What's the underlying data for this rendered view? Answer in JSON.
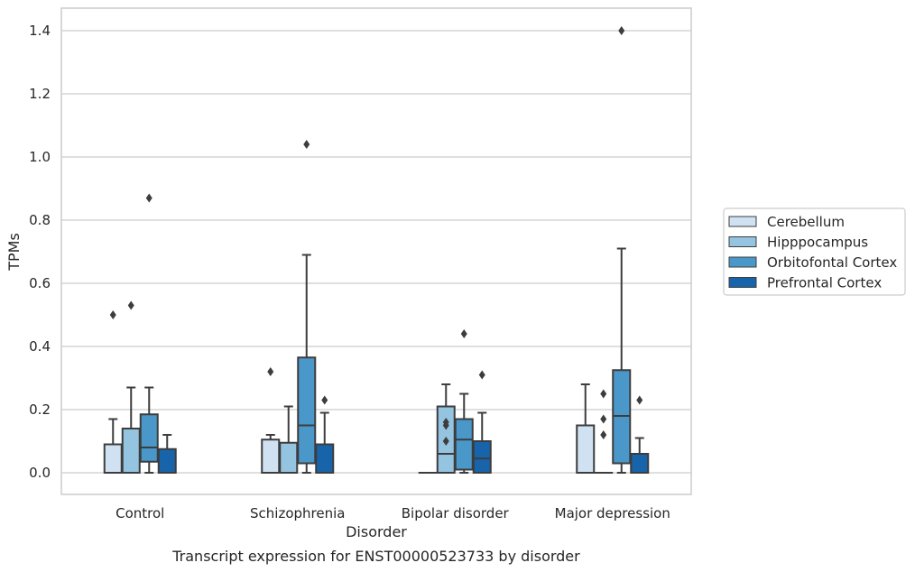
{
  "chart_data": {
    "type": "box",
    "caption": "Transcript expression for ENST00000523733 by disorder",
    "xlabel": "Disorder",
    "ylabel": "TPMs",
    "ylim": [
      -0.07,
      1.47
    ],
    "yticks": [
      0.0,
      0.2,
      0.4,
      0.6,
      0.8,
      1.0,
      1.2,
      1.4
    ],
    "categories": [
      "Control",
      "Schizophrenia",
      "Bipolar disorder",
      "Major depression"
    ],
    "grid": "horizontal",
    "legend_position": "right",
    "series": [
      {
        "name": "Cerebellum",
        "color": "#d0e1f2",
        "boxes": [
          {
            "min": 0.0,
            "q1": 0.0,
            "median": 0.0,
            "q3": 0.09,
            "max": 0.17,
            "outliers": [
              0.5
            ]
          },
          {
            "min": 0.0,
            "q1": 0.0,
            "median": 0.0,
            "q3": 0.105,
            "max": 0.12,
            "outliers": [
              0.32
            ]
          },
          {
            "min": 0.0,
            "q1": 0.0,
            "median": 0.0,
            "q3": 0.0,
            "max": 0.0,
            "outliers": []
          },
          {
            "min": 0.0,
            "q1": 0.0,
            "median": 0.0,
            "q3": 0.15,
            "max": 0.28,
            "outliers": []
          }
        ]
      },
      {
        "name": "Hipppocampus",
        "color": "#94c4df",
        "boxes": [
          {
            "min": 0.0,
            "q1": 0.0,
            "median": 0.0,
            "q3": 0.14,
            "max": 0.27,
            "outliers": [
              0.53
            ]
          },
          {
            "min": 0.0,
            "q1": 0.0,
            "median": 0.0,
            "q3": 0.095,
            "max": 0.21,
            "outliers": []
          },
          {
            "min": 0.0,
            "q1": 0.0,
            "median": 0.06,
            "q3": 0.21,
            "max": 0.28,
            "outliers": [
              0.1,
              0.15,
              0.16
            ]
          },
          {
            "min": 0.0,
            "q1": 0.0,
            "median": 0.0,
            "q3": 0.0,
            "max": 0.0,
            "outliers": [
              0.12,
              0.17,
              0.25
            ]
          }
        ]
      },
      {
        "name": "Orbitofontal Cortex",
        "color": "#4a98c9",
        "boxes": [
          {
            "min": 0.0,
            "q1": 0.035,
            "median": 0.08,
            "q3": 0.185,
            "max": 0.27,
            "outliers": [
              0.87
            ]
          },
          {
            "min": 0.0,
            "q1": 0.03,
            "median": 0.15,
            "q3": 0.365,
            "max": 0.69,
            "outliers": [
              1.04
            ]
          },
          {
            "min": 0.0,
            "q1": 0.01,
            "median": 0.105,
            "q3": 0.17,
            "max": 0.25,
            "outliers": [
              0.44
            ]
          },
          {
            "min": 0.0,
            "q1": 0.03,
            "median": 0.18,
            "q3": 0.325,
            "max": 0.71,
            "outliers": [
              1.4
            ]
          }
        ]
      },
      {
        "name": "Prefrontal Cortex",
        "color": "#1764ab",
        "boxes": [
          {
            "min": 0.0,
            "q1": 0.0,
            "median": 0.0,
            "q3": 0.075,
            "max": 0.12,
            "outliers": []
          },
          {
            "min": 0.0,
            "q1": 0.0,
            "median": 0.0,
            "q3": 0.09,
            "max": 0.19,
            "outliers": [
              0.23
            ]
          },
          {
            "min": 0.0,
            "q1": 0.0,
            "median": 0.045,
            "q3": 0.1,
            "max": 0.19,
            "outliers": [
              0.31
            ]
          },
          {
            "min": 0.0,
            "q1": 0.0,
            "median": 0.0,
            "q3": 0.06,
            "max": 0.11,
            "outliers": [
              0.23
            ]
          }
        ]
      }
    ]
  }
}
